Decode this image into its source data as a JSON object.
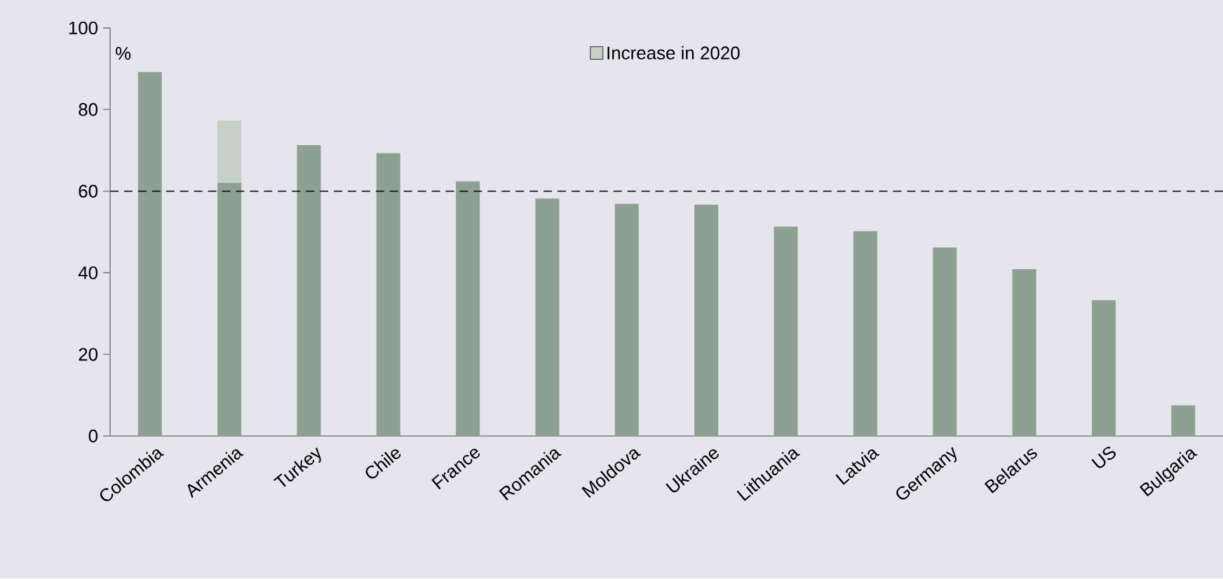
{
  "chart_data": {
    "type": "bar",
    "stacked": true,
    "ylabel": "%",
    "categories": [
      "Colombia",
      "Armenia",
      "Turkey",
      "Chile",
      "France",
      "Romania",
      "Moldova",
      "Ukraine",
      "Lithuania",
      "Latvia",
      "Germany",
      "Belarus",
      "US",
      "Bulgaria"
    ],
    "series": [
      {
        "color": "#8ea091",
        "values": [
          89.2,
          62,
          71.3,
          69.3,
          62.4,
          58.2,
          56.9,
          56.7,
          51.3,
          50.2,
          46.2,
          40.9,
          33.3,
          7.5
        ]
      },
      {
        "name": "Increase in 2020",
        "color": "#c6d0c7",
        "values": [
          null,
          15.3,
          null,
          null,
          null,
          null,
          null,
          null,
          null,
          null,
          null,
          null,
          null,
          null
        ]
      }
    ],
    "ylim": [
      0,
      100
    ],
    "yticks": [
      0,
      20,
      40,
      60,
      80,
      100
    ],
    "grid": false,
    "legend": "top",
    "ref_lines": [
      {
        "axis": "y",
        "value": 60,
        "color": "#000000",
        "line_style": "dashed"
      }
    ]
  }
}
